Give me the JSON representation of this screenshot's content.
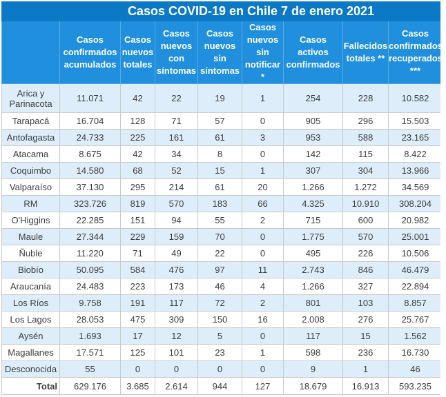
{
  "title": "Casos COVID-19 en Chile 7 de enero 2021",
  "headers": [
    "",
    "Casos confirmados acumulados",
    "Casos nuevos totales",
    "Casos nuevos con síntomas",
    "Casos nuevos sin síntomas",
    "Casos nuevos sin notificar *",
    "Casos activos confirmados",
    "Fallecidos totales **",
    "Casos confirmados recuperados ***"
  ],
  "rows": [
    [
      "Arica y Parinacota",
      "11.071",
      "42",
      "22",
      "19",
      "1",
      "254",
      "228",
      "10.582"
    ],
    [
      "Tarapacá",
      "16.704",
      "128",
      "71",
      "57",
      "0",
      "905",
      "296",
      "15.503"
    ],
    [
      "Antofagasta",
      "24.733",
      "225",
      "161",
      "61",
      "3",
      "953",
      "588",
      "23.165"
    ],
    [
      "Atacama",
      "8.675",
      "42",
      "34",
      "8",
      "0",
      "142",
      "115",
      "8.422"
    ],
    [
      "Coquimbo",
      "14.580",
      "68",
      "52",
      "15",
      "1",
      "307",
      "304",
      "13.966"
    ],
    [
      "Valparaíso",
      "37.130",
      "295",
      "214",
      "61",
      "20",
      "1.266",
      "1.272",
      "34.569"
    ],
    [
      "RM",
      "323.726",
      "819",
      "570",
      "183",
      "66",
      "4.325",
      "10.910",
      "308.204"
    ],
    [
      "O'Higgins",
      "22.285",
      "151",
      "94",
      "55",
      "2",
      "715",
      "600",
      "20.982"
    ],
    [
      "Maule",
      "27.344",
      "229",
      "159",
      "70",
      "0",
      "1.775",
      "570",
      "25.001"
    ],
    [
      "Ñuble",
      "11.220",
      "71",
      "49",
      "22",
      "0",
      "495",
      "226",
      "10.506"
    ],
    [
      "Biobío",
      "50.095",
      "584",
      "476",
      "97",
      "11",
      "2.743",
      "846",
      "46.479"
    ],
    [
      "Araucanía",
      "24.483",
      "223",
      "173",
      "46",
      "4",
      "1.266",
      "327",
      "22.894"
    ],
    [
      "Los Ríos",
      "9.758",
      "191",
      "117",
      "72",
      "2",
      "801",
      "103",
      "8.857"
    ],
    [
      "Los Lagos",
      "28.053",
      "475",
      "309",
      "150",
      "16",
      "2.008",
      "276",
      "25.767"
    ],
    [
      "Aysén",
      "1.693",
      "17",
      "12",
      "5",
      "0",
      "117",
      "15",
      "1.562"
    ],
    [
      "Magallanes",
      "17.571",
      "125",
      "101",
      "23",
      "1",
      "598",
      "236",
      "16.730"
    ],
    [
      "Desconocida",
      "55",
      "0",
      "0",
      "0",
      "0",
      "9",
      "1",
      "46"
    ]
  ],
  "total": [
    "Total",
    "629.176",
    "3.685",
    "2.614",
    "944",
    "127",
    "18.679",
    "16.913",
    "593.235"
  ],
  "colors": {
    "title_bg": "#0b79c6",
    "header_bg": "#1f8fde",
    "stripe": "#ddeefa"
  }
}
